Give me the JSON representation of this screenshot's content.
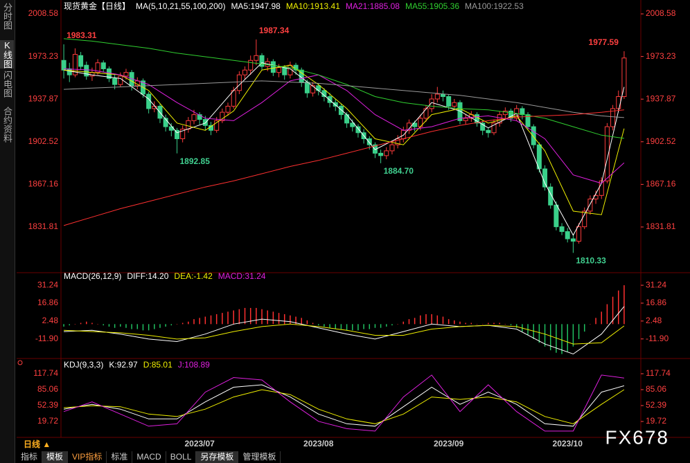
{
  "sidebar": [
    "分时图",
    "K线图",
    "闪电图",
    "合约资料"
  ],
  "footer": {
    "period": "日线 ▲",
    "brand": "FX678"
  },
  "tabs": [
    "指标",
    "模板",
    "VIP指标",
    "标准",
    "MACD",
    "BOLL",
    "另存模板",
    "管理模板"
  ],
  "chart_data": [
    {
      "type": "candlestick",
      "title": "现货黄金【日线】",
      "indicator": "MA(5,10,21,55,100,200)",
      "up_color": "#ff3c3c",
      "down_color": "#3ad08a",
      "categories": [
        null,
        null,
        null,
        null,
        null,
        null,
        null,
        null,
        null,
        null,
        null,
        null,
        null,
        null,
        null,
        null,
        null,
        null,
        null,
        null,
        null,
        null,
        null,
        null,
        "2023/07",
        null,
        null,
        null,
        null,
        null,
        null,
        null,
        null,
        null,
        null,
        null,
        null,
        null,
        null,
        null,
        null,
        null,
        null,
        null,
        null,
        "2023/08",
        null,
        null,
        null,
        null,
        null,
        null,
        null,
        null,
        null,
        null,
        null,
        null,
        null,
        null,
        null,
        null,
        null,
        null,
        null,
        null,
        null,
        null,
        "2023/09",
        null,
        null,
        null,
        null,
        null,
        null,
        null,
        null,
        null,
        null,
        null,
        null,
        null,
        null,
        null,
        null,
        null,
        null,
        null,
        null,
        "2023/10",
        null,
        null,
        null,
        null,
        null,
        null,
        null,
        null,
        null,
        null
      ],
      "candles": [
        [
          1970,
          1983.31,
          1955,
          1962
        ],
        [
          1963,
          1968,
          1952,
          1958
        ],
        [
          1958,
          1980,
          1956,
          1975
        ],
        [
          1974,
          1977,
          1962,
          1965
        ],
        [
          1966,
          1969,
          1954,
          1957
        ],
        [
          1957,
          1964,
          1953,
          1960
        ],
        [
          1960,
          1971,
          1958,
          1968
        ],
        [
          1968,
          1970,
          1960,
          1963
        ],
        [
          1963,
          1965,
          1952,
          1955
        ],
        [
          1955,
          1958,
          1946,
          1950
        ],
        [
          1950,
          1960,
          1948,
          1957
        ],
        [
          1957,
          1963,
          1954,
          1960
        ],
        [
          1960,
          1962,
          1945,
          1949
        ],
        [
          1949,
          1956,
          1946,
          1953
        ],
        [
          1953,
          1955,
          1939,
          1942
        ],
        [
          1942,
          1944,
          1926,
          1930
        ],
        [
          1930,
          1936,
          1927,
          1932
        ],
        [
          1932,
          1934,
          1918,
          1922
        ],
        [
          1922,
          1925,
          1911,
          1915
        ],
        [
          1915,
          1918,
          1907,
          1912
        ],
        [
          1912,
          1914,
          1892.85,
          1905
        ],
        [
          1905,
          1916,
          1902,
          1913
        ],
        [
          1913,
          1923,
          1910,
          1920
        ],
        [
          1920,
          1929,
          1917,
          1925
        ],
        [
          1925,
          1927,
          1917,
          1921
        ],
        [
          1921,
          1924,
          1912,
          1916
        ],
        [
          1916,
          1919,
          1908,
          1912
        ],
        [
          1912,
          1923,
          1910,
          1920
        ],
        [
          1920,
          1930,
          1918,
          1927
        ],
        [
          1927,
          1935,
          1924,
          1932
        ],
        [
          1932,
          1948,
          1930,
          1945
        ],
        [
          1945,
          1961,
          1942,
          1958
        ],
        [
          1958,
          1965,
          1954,
          1962
        ],
        [
          1962,
          1974,
          1958,
          1970
        ],
        [
          1970,
          1987.34,
          1966,
          1974
        ],
        [
          1974,
          1976,
          1962,
          1965
        ],
        [
          1965,
          1972,
          1961,
          1969
        ],
        [
          1969,
          1971,
          1957,
          1960
        ],
        [
          1960,
          1967,
          1956,
          1964
        ],
        [
          1964,
          1966,
          1954,
          1958
        ],
        [
          1958,
          1969,
          1955,
          1966
        ],
        [
          1966,
          1968,
          1958,
          1962
        ],
        [
          1962,
          1964,
          1948,
          1952
        ],
        [
          1952,
          1954,
          1939,
          1943
        ],
        [
          1943,
          1952,
          1940,
          1949
        ],
        [
          1949,
          1951,
          1941,
          1945
        ],
        [
          1945,
          1947,
          1936,
          1940
        ],
        [
          1940,
          1943,
          1931,
          1935
        ],
        [
          1935,
          1938,
          1928,
          1932
        ],
        [
          1932,
          1934,
          1921,
          1925
        ],
        [
          1925,
          1927,
          1914,
          1918
        ],
        [
          1918,
          1921,
          1911,
          1915
        ],
        [
          1915,
          1917,
          1906,
          1910
        ],
        [
          1910,
          1913,
          1901,
          1905
        ],
        [
          1905,
          1907,
          1896,
          1900
        ],
        [
          1900,
          1902,
          1889,
          1893
        ],
        [
          1893,
          1896,
          1884.7,
          1891
        ],
        [
          1891,
          1898,
          1888,
          1895
        ],
        [
          1895,
          1903,
          1892,
          1900
        ],
        [
          1900,
          1908,
          1897,
          1905
        ],
        [
          1905,
          1915,
          1902,
          1912
        ],
        [
          1912,
          1921,
          1909,
          1918
        ],
        [
          1918,
          1920,
          1911,
          1915
        ],
        [
          1915,
          1925,
          1912,
          1922
        ],
        [
          1922,
          1933,
          1919,
          1930
        ],
        [
          1930,
          1942,
          1927,
          1938
        ],
        [
          1938,
          1948,
          1935,
          1942
        ],
        [
          1942,
          1945,
          1936,
          1940
        ],
        [
          1940,
          1942,
          1929,
          1932
        ],
        [
          1932,
          1938,
          1929,
          1935
        ],
        [
          1935,
          1937,
          1917,
          1920
        ],
        [
          1920,
          1925,
          1917,
          1922
        ],
        [
          1922,
          1928,
          1919,
          1925
        ],
        [
          1925,
          1927,
          1915,
          1918
        ],
        [
          1918,
          1920,
          1908,
          1912
        ],
        [
          1912,
          1914,
          1906,
          1910
        ],
        [
          1910,
          1921,
          1908,
          1918
        ],
        [
          1918,
          1928,
          1915,
          1925
        ],
        [
          1925,
          1931,
          1922,
          1928
        ],
        [
          1928,
          1930,
          1919,
          1922
        ],
        [
          1922,
          1933,
          1920,
          1930
        ],
        [
          1930,
          1932,
          1921,
          1925
        ],
        [
          1925,
          1927,
          1912,
          1915
        ],
        [
          1915,
          1917,
          1897,
          1900
        ],
        [
          1900,
          1902,
          1877,
          1880
        ],
        [
          1880,
          1883,
          1862,
          1865
        ],
        [
          1865,
          1868,
          1847,
          1850
        ],
        [
          1850,
          1853,
          1829,
          1832
        ],
        [
          1832,
          1835,
          1825,
          1828
        ],
        [
          1828,
          1831,
          1819,
          1822
        ],
        [
          1822,
          1826,
          1810.33,
          1820
        ],
        [
          1820,
          1835,
          1818,
          1832
        ],
        [
          1832,
          1848,
          1830,
          1845
        ],
        [
          1845,
          1858,
          1842,
          1855
        ],
        [
          1855,
          1862,
          1851,
          1858
        ],
        [
          1858,
          1873,
          1855,
          1870
        ],
        [
          1870,
          1918,
          1868,
          1915
        ],
        [
          1915,
          1933,
          1912,
          1930
        ],
        [
          1930,
          1945,
          1927,
          1940
        ],
        [
          1940,
          1977.59,
          1938,
          1972
        ]
      ],
      "x": [
        0,
        5,
        10,
        15,
        20,
        25,
        30,
        35,
        40,
        45,
        50,
        55,
        60,
        65,
        70,
        75,
        80,
        85,
        90,
        95,
        99
      ],
      "series": [
        {
          "name": "MA5:1947.98",
          "color": "#ffffff",
          "values": [
            1962,
            1958,
            1955,
            1938,
            1910,
            1918,
            1945,
            1968,
            1963,
            1945,
            1925,
            1896,
            1908,
            1935,
            1928,
            1914,
            1926,
            1868,
            1825,
            1868,
            1947.98
          ]
        },
        {
          "name": "MA10:1913.41",
          "color": "#f0f000",
          "values": [
            1962,
            1960,
            1958,
            1945,
            1918,
            1912,
            1928,
            1962,
            1966,
            1950,
            1930,
            1905,
            1900,
            1925,
            1930,
            1918,
            1924,
            1895,
            1845,
            1842,
            1913.41
          ]
        },
        {
          "name": "MA21:1885.08",
          "color": "#e020e0",
          "values": [
            1963,
            1962,
            1958,
            1950,
            1935,
            1922,
            1920,
            1935,
            1953,
            1958,
            1945,
            1925,
            1912,
            1915,
            1922,
            1924,
            1920,
            1905,
            1875,
            1868,
            1885.08
          ]
        },
        {
          "name": "MA55:1905.36",
          "color": "#30d030",
          "values": [
            1988,
            1986,
            1983,
            1980,
            1976,
            1973,
            1970,
            1967,
            1964,
            1958,
            1950,
            1940,
            1935,
            1932,
            1930,
            1929,
            1926,
            1922,
            1915,
            1908,
            1905.36
          ]
        },
        {
          "name": "MA100:1922.53",
          "color": "#9a9a9a",
          "values": [
            1946,
            1947,
            1948,
            1949,
            1950,
            1951,
            1952,
            1953,
            1952,
            1951,
            1949,
            1947,
            1945,
            1943,
            1941,
            1938,
            1935,
            1931,
            1927,
            1924,
            1922.53
          ]
        },
        {
          "color": "#ff3030",
          "values": [
            1833,
            1840,
            1847,
            1853,
            1859,
            1865,
            1870,
            1876,
            1882,
            1887,
            1893,
            1899,
            1905,
            1911,
            1916,
            1920,
            1923,
            1924,
            1925,
            1927,
            1929
          ]
        }
      ],
      "annotations": [
        1983.31,
        1987.34,
        1892.85,
        {
          "value": 1884.7,
          "label": "1884.70"
        },
        1810.33,
        1977.59
      ],
      "ylim": [
        1796.2,
        2015.5
      ],
      "yticks": [
        2008.58,
        1973.23,
        1937.87,
        1902.52,
        1867.16,
        1831.81
      ]
    },
    {
      "type": "macd",
      "indicator": "MACD(26,12,9)",
      "histogram": {
        "name": "MACD:31.24",
        "color": "#e020e0",
        "up_color": "#ff3030",
        "down_color": "#20c060",
        "values": [
          -2,
          -1,
          0,
          1,
          2,
          1,
          0,
          -1,
          -2,
          -3,
          -2,
          -3,
          -4,
          -4,
          -5,
          -5,
          -4,
          -3,
          -2,
          -1,
          0,
          1,
          2,
          4,
          5,
          6,
          7,
          8,
          9,
          10,
          11,
          12,
          13,
          13,
          13,
          12,
          11,
          10,
          9,
          8,
          7,
          6,
          5,
          3,
          1,
          -1,
          -2,
          -3,
          -4,
          -4,
          -5,
          -5,
          -5,
          -4,
          -4,
          -3,
          -3,
          -2,
          -1,
          0,
          2,
          4,
          5,
          7,
          8,
          8,
          7,
          6,
          4,
          3,
          2,
          1,
          1,
          0,
          0,
          1,
          1,
          1,
          0,
          -1,
          -3,
          -6,
          -9,
          -12,
          -15,
          -18,
          -21,
          -23,
          -24,
          -22,
          -18,
          -12,
          -6,
          0,
          5,
          10,
          16,
          22,
          27,
          31.24
        ]
      },
      "x": [
        0,
        5,
        10,
        15,
        20,
        25,
        30,
        35,
        40,
        45,
        50,
        55,
        60,
        65,
        70,
        75,
        80,
        85,
        90,
        95,
        99
      ],
      "series": [
        {
          "name": "DIFF:14.20",
          "color": "#ffffff",
          "values": [
            -6,
            -5,
            -8,
            -12,
            -14,
            -8,
            0,
            4,
            2,
            -3,
            -8,
            -12,
            -6,
            0,
            -2,
            -1,
            -4,
            -16,
            -24,
            -8,
            14.2
          ]
        },
        {
          "name": "DEA:-1.42",
          "color": "#f0f000",
          "values": [
            -5,
            -6,
            -7,
            -9,
            -12,
            -11,
            -6,
            -2,
            0,
            -2,
            -5,
            -9,
            -9,
            -4,
            -2,
            -1,
            -2,
            -8,
            -16,
            -15,
            -1.42
          ]
        }
      ],
      "ylim": [
        -26.5,
        37.98
      ],
      "yticks": [
        31.24,
        16.86,
        2.48,
        {
          "value": -11.9,
          "label": "-11.90"
        }
      ]
    },
    {
      "type": "kdj",
      "indicator": "KDJ(9,3,3)",
      "x": [
        0,
        5,
        10,
        15,
        20,
        25,
        30,
        35,
        40,
        45,
        50,
        55,
        60,
        65,
        70,
        75,
        80,
        85,
        90,
        95,
        99
      ],
      "series": [
        {
          "name": "K:92.97",
          "color": "#ffffff",
          "values": [
            45,
            55,
            45,
            25,
            25,
            60,
            90,
            95,
            70,
            35,
            15,
            10,
            50,
            90,
            55,
            80,
            55,
            15,
            10,
            80,
            92.97
          ]
        },
        {
          "name": "D:85.01",
          "color": "#f0f000",
          "values": [
            48,
            52,
            50,
            35,
            30,
            45,
            70,
            85,
            75,
            45,
            25,
            15,
            35,
            70,
            65,
            70,
            60,
            30,
            15,
            55,
            85.01
          ]
        },
        {
          "name": "J:108.89",
          "color": "#e020e0",
          "values": [
            40,
            60,
            35,
            10,
            15,
            80,
            110,
            105,
            60,
            20,
            5,
            0,
            70,
            115,
            40,
            95,
            40,
            0,
            0,
            115,
            108.89
          ]
        }
      ],
      "ylim": [
        -10.1,
        139.05
      ],
      "yticks": [
        117.74,
        85.06,
        52.39,
        19.72
      ]
    }
  ]
}
